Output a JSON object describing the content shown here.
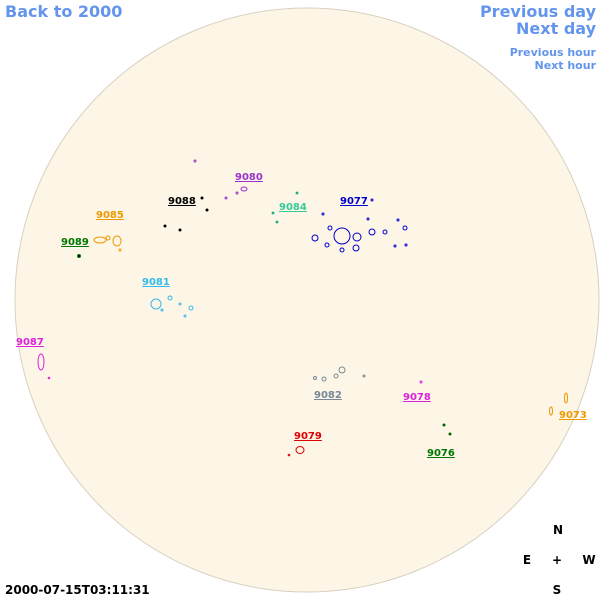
{
  "nav": {
    "back": "Back to 2000",
    "previous_day": "Previous day",
    "next_day": "Next day",
    "previous_hour": "Previous hour",
    "next_hour": "Next hour"
  },
  "regions": [
    "9080",
    "9088",
    "9084",
    "9077",
    "9085",
    "9089",
    "9081",
    "9087",
    "9082",
    "9078",
    "9073",
    "9079",
    "9076"
  ],
  "compass": {
    "north": "N",
    "east": "E",
    "center": "+",
    "west": "W",
    "south": "S"
  },
  "timestamp": "2000-07-15T03:11:31"
}
